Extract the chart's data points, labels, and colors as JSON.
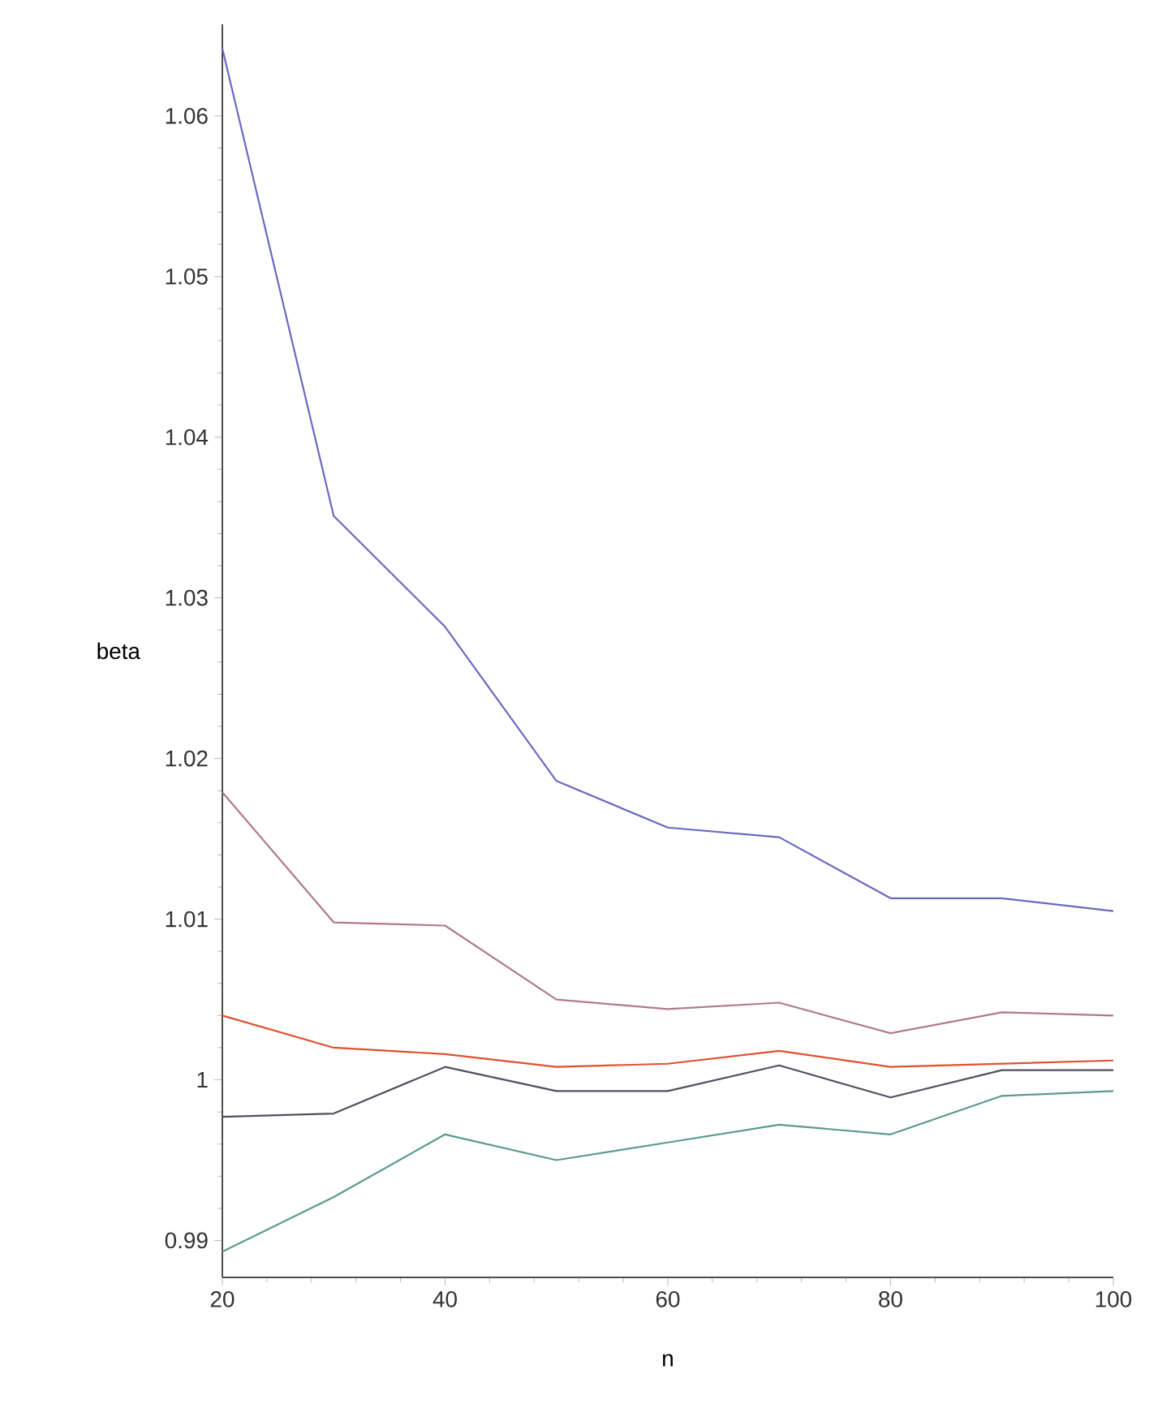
{
  "chart_data": {
    "type": "line",
    "xlabel": "n",
    "ylabel": "beta",
    "x": [
      20,
      30,
      40,
      50,
      60,
      70,
      80,
      90,
      100
    ],
    "xlim": [
      20,
      100
    ],
    "xticks": [
      20,
      40,
      60,
      80,
      100
    ],
    "ylim": [
      0.9877,
      1.0657
    ],
    "yticks": [
      0.99,
      1,
      1.01,
      1.02,
      1.03,
      1.04,
      1.05,
      1.06
    ],
    "grid": false,
    "marker": "none",
    "line_style": "solid",
    "series": [
      {
        "color": "#6b68c0",
        "values": [
          1.0642,
          1.0351,
          1.0282,
          1.0186,
          1.0157,
          1.0151,
          1.0113,
          1.0113,
          1.0105
        ]
      },
      {
        "color": "#b07a8a",
        "values": [
          1.0179,
          1.0098,
          1.0096,
          1.005,
          1.0044,
          1.0048,
          1.0029,
          1.0042,
          1.004
        ]
      },
      {
        "color": "#e05030",
        "values": [
          1.004,
          1.002,
          1.0016,
          1.0008,
          1.001,
          1.0018,
          1.0008,
          1.001,
          1.0012
        ]
      },
      {
        "color": "#505060",
        "values": [
          0.9977,
          0.9979,
          1.0008,
          0.9993,
          0.9993,
          1.0009,
          0.9989,
          1.0006,
          1.0006
        ]
      },
      {
        "color": "#5a9a90",
        "values": [
          0.9893,
          0.9927,
          0.9966,
          0.995,
          0.9961,
          0.9972,
          0.9966,
          0.999,
          0.9993
        ]
      }
    ]
  }
}
